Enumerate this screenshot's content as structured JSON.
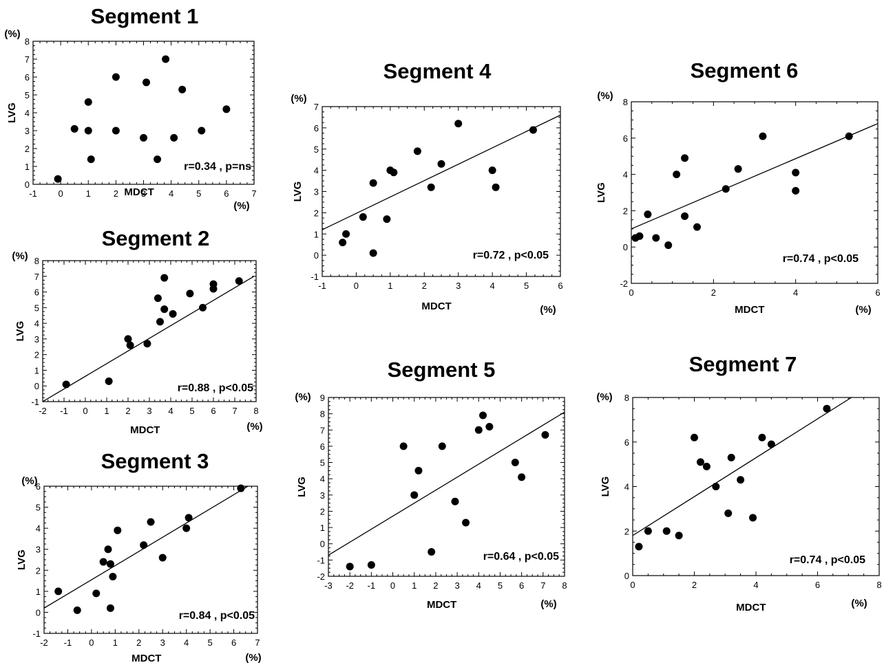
{
  "chart_data": [
    {
      "type": "scatter",
      "title": "Segment 1",
      "xlabel": "MDCT",
      "ylabel": "LVG",
      "x_unit": "(%)",
      "y_unit": "(%)",
      "xlim": [
        -1,
        7
      ],
      "ylim": [
        0,
        8
      ],
      "xticks": [
        -1,
        0,
        1,
        2,
        3,
        4,
        5,
        6,
        7
      ],
      "yticks": [
        0,
        1,
        2,
        3,
        4,
        5,
        6,
        7,
        8
      ],
      "statistic": "r=0.34 , p=ns",
      "fit_line": null,
      "points": [
        {
          "x": -0.1,
          "y": 0.3
        },
        {
          "x": 0.5,
          "y": 3.1
        },
        {
          "x": 1.0,
          "y": 3.0
        },
        {
          "x": 1.0,
          "y": 4.6
        },
        {
          "x": 1.1,
          "y": 1.4
        },
        {
          "x": 2.0,
          "y": 6.0
        },
        {
          "x": 2.0,
          "y": 3.0
        },
        {
          "x": 3.0,
          "y": 2.6
        },
        {
          "x": 3.1,
          "y": 5.7
        },
        {
          "x": 3.5,
          "y": 1.4
        },
        {
          "x": 3.8,
          "y": 7.0
        },
        {
          "x": 4.1,
          "y": 2.6
        },
        {
          "x": 4.4,
          "y": 5.3
        },
        {
          "x": 5.1,
          "y": 3.0
        },
        {
          "x": 6.0,
          "y": 4.2
        }
      ]
    },
    {
      "type": "scatter",
      "title": "Segment 2",
      "xlabel": "MDCT",
      "ylabel": "LVG",
      "x_unit": "(%)",
      "y_unit": "(%)",
      "xlim": [
        -2,
        8
      ],
      "ylim": [
        -1,
        8
      ],
      "xticks": [
        -2,
        -1,
        0,
        1,
        2,
        3,
        4,
        5,
        6,
        7,
        8
      ],
      "yticks": [
        -1,
        0,
        1,
        2,
        3,
        4,
        5,
        6,
        7,
        8
      ],
      "statistic": "r=0.88 , p<0.05",
      "fit_line": {
        "x1": -2,
        "y1": -1,
        "x2": 7.9,
        "y2": 7.0
      },
      "points": [
        {
          "x": -0.9,
          "y": 0.1
        },
        {
          "x": 1.1,
          "y": 0.3
        },
        {
          "x": 2.0,
          "y": 3.0
        },
        {
          "x": 2.1,
          "y": 2.6
        },
        {
          "x": 2.9,
          "y": 2.7
        },
        {
          "x": 3.4,
          "y": 5.6
        },
        {
          "x": 3.5,
          "y": 4.1
        },
        {
          "x": 3.7,
          "y": 6.9
        },
        {
          "x": 3.7,
          "y": 4.9
        },
        {
          "x": 4.1,
          "y": 4.6
        },
        {
          "x": 4.9,
          "y": 5.9
        },
        {
          "x": 5.5,
          "y": 5.0
        },
        {
          "x": 6.0,
          "y": 6.5
        },
        {
          "x": 6.0,
          "y": 6.2
        },
        {
          "x": 7.2,
          "y": 6.7
        }
      ]
    },
    {
      "type": "scatter",
      "title": "Segment 3",
      "xlabel": "MDCT",
      "ylabel": "LVG",
      "x_unit": "(%)",
      "y_unit": "(%)",
      "xlim": [
        -2,
        7
      ],
      "ylim": [
        -1,
        6
      ],
      "xticks": [
        -2,
        -1,
        0,
        1,
        2,
        3,
        4,
        5,
        6,
        7
      ],
      "yticks": [
        -1,
        0,
        1,
        2,
        3,
        4,
        5,
        6
      ],
      "statistic": "r=0.84 , p<0.05",
      "fit_line": {
        "x1": -2,
        "y1": 0.2,
        "x2": 6.6,
        "y2": 6.0
      },
      "points": [
        {
          "x": -1.4,
          "y": 1.0
        },
        {
          "x": -0.6,
          "y": 0.1
        },
        {
          "x": 0.2,
          "y": 0.9
        },
        {
          "x": 0.5,
          "y": 2.4
        },
        {
          "x": 0.7,
          "y": 3.0
        },
        {
          "x": 0.8,
          "y": 2.3
        },
        {
          "x": 0.8,
          "y": 0.2
        },
        {
          "x": 0.9,
          "y": 1.7
        },
        {
          "x": 1.1,
          "y": 3.9
        },
        {
          "x": 2.2,
          "y": 3.2
        },
        {
          "x": 2.5,
          "y": 4.3
        },
        {
          "x": 3.0,
          "y": 2.6
        },
        {
          "x": 4.0,
          "y": 4.0
        },
        {
          "x": 4.1,
          "y": 4.5
        },
        {
          "x": 6.3,
          "y": 5.9
        }
      ]
    },
    {
      "type": "scatter",
      "title": "Segment 4",
      "xlabel": "MDCT",
      "ylabel": "LVG",
      "x_unit": "(%)",
      "y_unit": "(%)",
      "xlim": [
        -1,
        6
      ],
      "ylim": [
        -1,
        7
      ],
      "xticks": [
        -1,
        0,
        1,
        2,
        3,
        4,
        5,
        6
      ],
      "yticks": [
        -1,
        0,
        1,
        2,
        3,
        4,
        5,
        6,
        7
      ],
      "statistic": "r=0.72 , p<0.05",
      "fit_line": {
        "x1": -1,
        "y1": 1.2,
        "x2": 6,
        "y2": 6.6
      },
      "points": [
        {
          "x": -0.4,
          "y": 0.6
        },
        {
          "x": -0.3,
          "y": 1.0
        },
        {
          "x": 0.2,
          "y": 1.8
        },
        {
          "x": 0.5,
          "y": 3.4
        },
        {
          "x": 0.5,
          "y": 0.1
        },
        {
          "x": 0.9,
          "y": 1.7
        },
        {
          "x": 1.0,
          "y": 4.0
        },
        {
          "x": 1.1,
          "y": 3.9
        },
        {
          "x": 1.8,
          "y": 4.9
        },
        {
          "x": 2.2,
          "y": 3.2
        },
        {
          "x": 2.5,
          "y": 4.3
        },
        {
          "x": 3.0,
          "y": 6.2
        },
        {
          "x": 4.0,
          "y": 4.0
        },
        {
          "x": 4.1,
          "y": 3.2
        },
        {
          "x": 5.2,
          "y": 5.9
        }
      ]
    },
    {
      "type": "scatter",
      "title": "Segment 5",
      "xlabel": "MDCT",
      "ylabel": "LVG",
      "x_unit": "(%)",
      "y_unit": "(%)",
      "xlim": [
        -3,
        8
      ],
      "ylim": [
        -2,
        9
      ],
      "xticks": [
        -3,
        -2,
        -1,
        0,
        1,
        2,
        3,
        4,
        5,
        6,
        7,
        8
      ],
      "yticks": [
        -2,
        -1,
        0,
        1,
        2,
        3,
        4,
        5,
        6,
        7,
        8,
        9
      ],
      "statistic": "r=0.64 , p<0.05",
      "fit_line": {
        "x1": -3,
        "y1": -0.7,
        "x2": 8,
        "y2": 8.1
      },
      "points": [
        {
          "x": -2.0,
          "y": -1.4
        },
        {
          "x": -1.0,
          "y": -1.3
        },
        {
          "x": 0.5,
          "y": 6.0
        },
        {
          "x": 1.0,
          "y": 3.0
        },
        {
          "x": 1.2,
          "y": 4.5
        },
        {
          "x": 1.8,
          "y": -0.5
        },
        {
          "x": 2.3,
          "y": 6.0
        },
        {
          "x": 2.9,
          "y": 2.6
        },
        {
          "x": 3.4,
          "y": 1.3
        },
        {
          "x": 4.0,
          "y": 7.0
        },
        {
          "x": 4.2,
          "y": 7.9
        },
        {
          "x": 4.5,
          "y": 7.2
        },
        {
          "x": 5.7,
          "y": 5.0
        },
        {
          "x": 6.0,
          "y": 4.1
        },
        {
          "x": 7.1,
          "y": 6.7
        }
      ]
    },
    {
      "type": "scatter",
      "title": "Segment 6",
      "xlabel": "MDCT",
      "ylabel": "LVG",
      "x_unit": "(%)",
      "y_unit": "(%)",
      "xlim": [
        0,
        6
      ],
      "ylim": [
        -2,
        8
      ],
      "xticks": [
        0,
        2,
        4,
        6
      ],
      "yticks": [
        -2,
        0,
        2,
        4,
        6,
        8
      ],
      "statistic": "r=0.74 , p<0.05",
      "fit_line": {
        "x1": 0,
        "y1": 1.0,
        "x2": 6,
        "y2": 6.8
      },
      "points": [
        {
          "x": 0.1,
          "y": 0.5
        },
        {
          "x": 0.2,
          "y": 0.6
        },
        {
          "x": 0.4,
          "y": 1.8
        },
        {
          "x": 0.6,
          "y": 0.5
        },
        {
          "x": 0.9,
          "y": 0.1
        },
        {
          "x": 1.1,
          "y": 4.0
        },
        {
          "x": 1.3,
          "y": 4.9
        },
        {
          "x": 1.3,
          "y": 1.7
        },
        {
          "x": 1.6,
          "y": 1.1
        },
        {
          "x": 2.3,
          "y": 3.2
        },
        {
          "x": 2.6,
          "y": 4.3
        },
        {
          "x": 3.2,
          "y": 6.1
        },
        {
          "x": 4.0,
          "y": 4.1
        },
        {
          "x": 4.0,
          "y": 3.1
        },
        {
          "x": 5.3,
          "y": 6.1
        }
      ]
    },
    {
      "type": "scatter",
      "title": "Segment 7",
      "xlabel": "MDCT",
      "ylabel": "LVG",
      "x_unit": "(%)",
      "y_unit": "(%)",
      "xlim": [
        0,
        8
      ],
      "ylim": [
        0,
        8
      ],
      "xticks": [
        0,
        2,
        4,
        6,
        8
      ],
      "yticks": [
        0,
        2,
        4,
        6,
        8
      ],
      "statistic": "r=0.74 , p<0.05",
      "fit_line": {
        "x1": 0,
        "y1": 1.8,
        "x2": 7.1,
        "y2": 8.0
      },
      "points": [
        {
          "x": 0.2,
          "y": 1.3
        },
        {
          "x": 0.5,
          "y": 2.0
        },
        {
          "x": 1.1,
          "y": 2.0
        },
        {
          "x": 1.5,
          "y": 1.8
        },
        {
          "x": 2.0,
          "y": 6.2
        },
        {
          "x": 2.2,
          "y": 5.1
        },
        {
          "x": 2.4,
          "y": 4.9
        },
        {
          "x": 2.7,
          "y": 4.0
        },
        {
          "x": 3.1,
          "y": 2.8
        },
        {
          "x": 3.2,
          "y": 5.3
        },
        {
          "x": 3.5,
          "y": 4.3
        },
        {
          "x": 3.9,
          "y": 2.6
        },
        {
          "x": 4.2,
          "y": 6.2
        },
        {
          "x": 4.5,
          "y": 5.9
        },
        {
          "x": 6.3,
          "y": 7.5
        }
      ]
    }
  ]
}
